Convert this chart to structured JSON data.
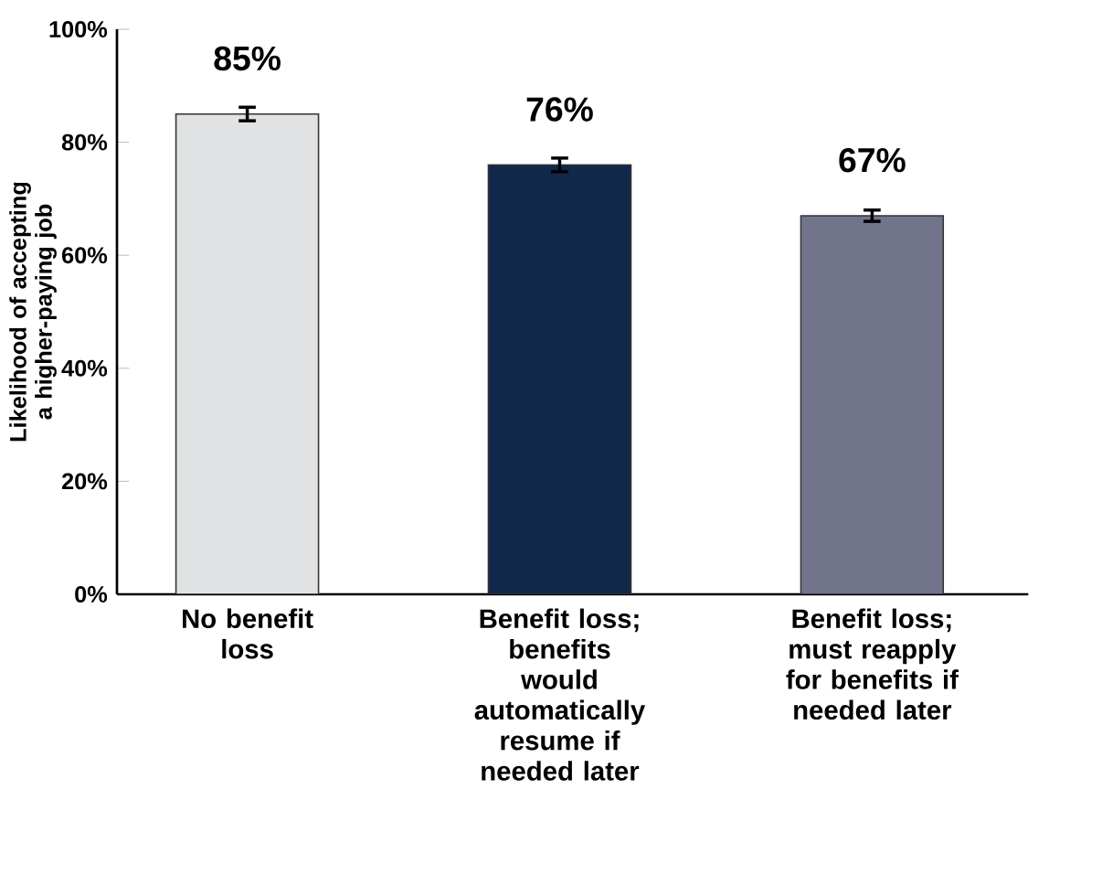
{
  "chart_data": {
    "type": "bar",
    "ylabel": "Likelihood of accepting a higher-paying job",
    "categories": [
      "No benefit loss",
      "Benefit loss; benefits would automatically resume if needed later",
      "Benefit loss; must reapply for benefits if needed later"
    ],
    "values": [
      85,
      76,
      67
    ],
    "colors": [
      "#e1e2e4",
      "#10284a",
      "#72748c"
    ],
    "errors": [
      1.2,
      1.2,
      1.0
    ],
    "value_labels": [
      "85%",
      "76%",
      "67%"
    ],
    "ylim": [
      0,
      100
    ],
    "yticks": [
      {
        "value": 0,
        "label": "0%"
      },
      {
        "value": 20,
        "label": "20%"
      },
      {
        "value": 40,
        "label": "40%"
      },
      {
        "value": 60,
        "label": "60%"
      },
      {
        "value": 80,
        "label": "80%"
      },
      {
        "value": 100,
        "label": "100%"
      }
    ],
    "grid": false
  }
}
